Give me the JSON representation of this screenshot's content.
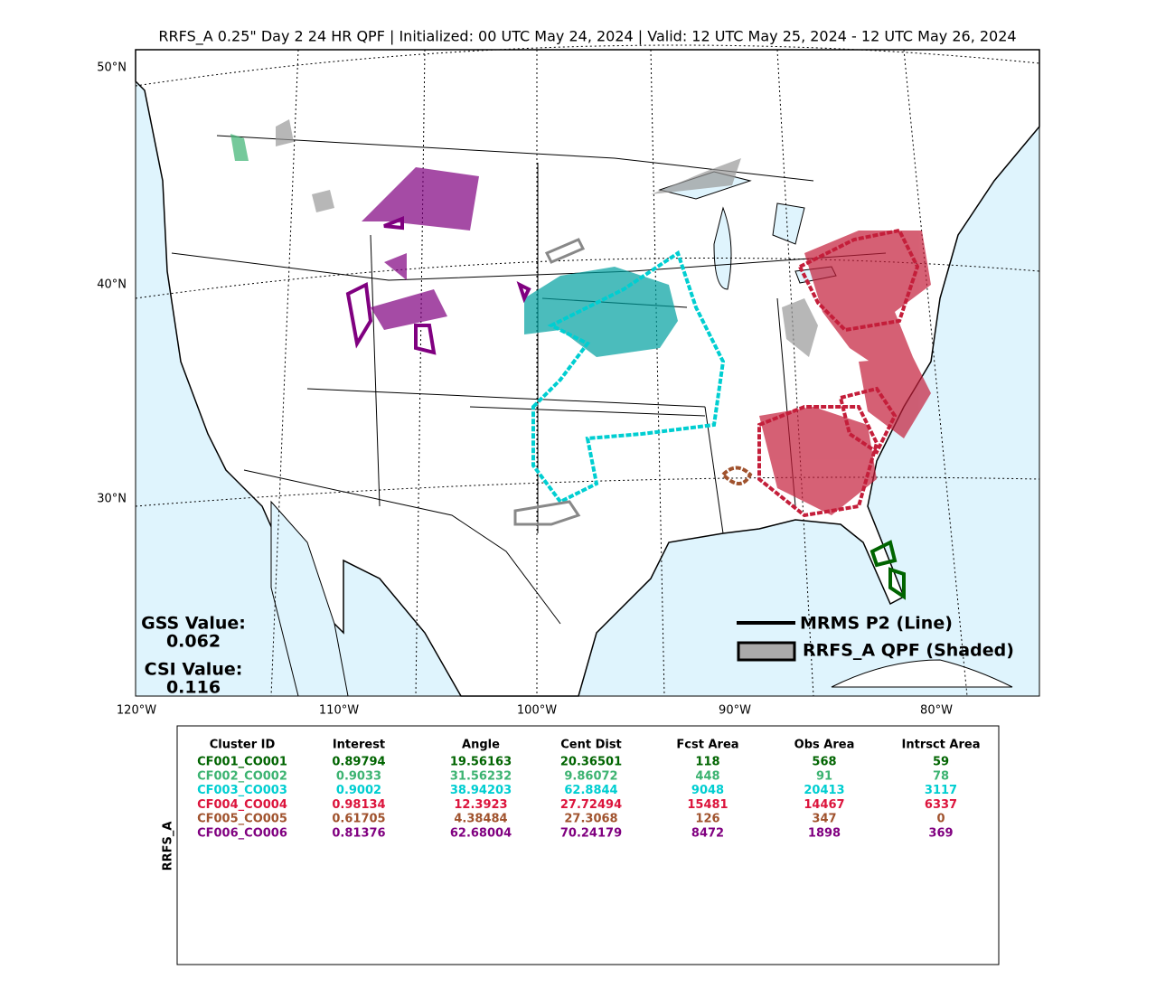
{
  "title": "RRFS_A 0.25\" Day 2 24 HR QPF | Initialized: 00 UTC May 24, 2024 | Valid: 12 UTC May 25, 2024 - 12 UTC May 26, 2024",
  "map": {
    "lat_labels": [
      "50°N",
      "40°N",
      "30°N"
    ],
    "lon_labels": [
      "120°W",
      "110°W",
      "100°W",
      "90°W",
      "80°W"
    ]
  },
  "stats": {
    "gss_label": "GSS Value:",
    "gss_value": "0.062",
    "csi_label": "CSI Value:",
    "csi_value": "0.116"
  },
  "legend": {
    "items": [
      "MRMS P2 (Line)",
      "RRFS_A QPF (Shaded)"
    ]
  },
  "table": {
    "side_label": "RRFS_A",
    "columns": [
      "Cluster ID",
      "Interest",
      "Angle",
      "Cent Dist",
      "Fcst Area",
      "Obs Area",
      "Intrsct Area"
    ],
    "row_colors": [
      "#006400",
      "#3cb371",
      "#00ced1",
      "#dc143c",
      "#a0522d",
      "#800080"
    ],
    "rows": [
      [
        "CF001_CO001",
        "0.89794",
        "19.56163",
        "20.36501",
        "118",
        "568",
        "59"
      ],
      [
        "CF002_CO002",
        "0.9033",
        "31.56232",
        "9.86072",
        "448",
        "91",
        "78"
      ],
      [
        "CF003_CO003",
        "0.9002",
        "38.94203",
        "62.8844",
        "9048",
        "20413",
        "3117"
      ],
      [
        "CF004_CO004",
        "0.98134",
        "12.3923",
        "27.72494",
        "15481",
        "14467",
        "6337"
      ],
      [
        "CF005_CO005",
        "0.61705",
        "4.38484",
        "27.3068",
        "126",
        "347",
        "0"
      ],
      [
        "CF006_CO006",
        "0.81376",
        "62.68004",
        "70.24179",
        "8472",
        "1898",
        "369"
      ]
    ]
  }
}
